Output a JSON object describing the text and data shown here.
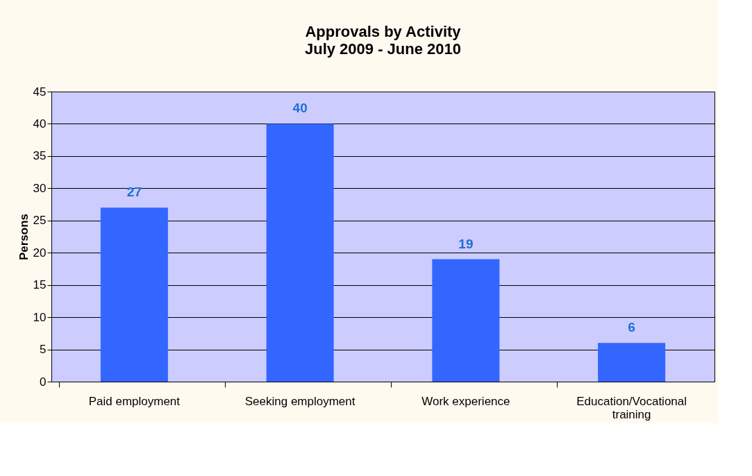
{
  "chart_data": {
    "type": "bar",
    "title": "Approvals by Activity",
    "subtitle": "July 2009 - June 2010",
    "ylabel": "Persons",
    "categories": [
      "Paid employment",
      "Seeking employment",
      "Work experience",
      "Education/Vocational training"
    ],
    "values": [
      27,
      40,
      19,
      6
    ],
    "color": "#3366ff",
    "ylim": [
      0,
      45
    ],
    "yticks": [
      0,
      5,
      10,
      15,
      20,
      25,
      30,
      35,
      40,
      45
    ],
    "grid": "y",
    "data_labels": true
  }
}
